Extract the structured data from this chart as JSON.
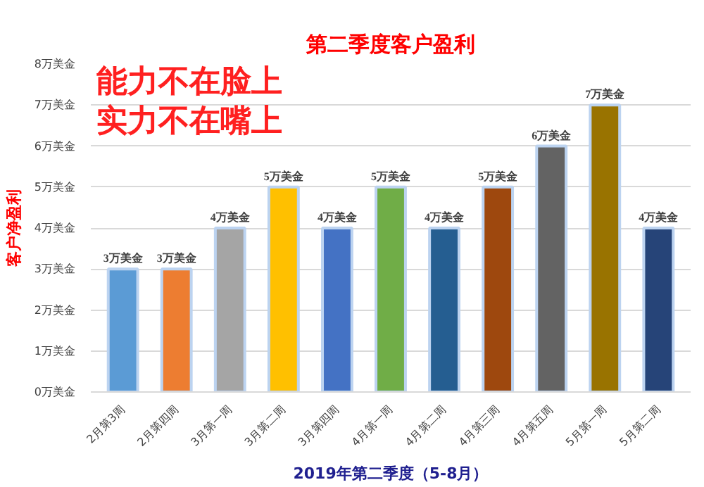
{
  "chart_data": {
    "type": "bar",
    "title": "第二季度客户盈利",
    "xlabel": "2019年第二季度（5-8月）",
    "ylabel": "客户净盈利",
    "annotations": [
      "能力不在脸上",
      "实力不在嘴上"
    ],
    "categories": [
      "2月第3周",
      "2月第四周",
      "3月第一周",
      "3月第二周",
      "3月第四周",
      "4月第一周",
      "4月第二周",
      "4月第三周",
      "4月第五周",
      "5月第一周",
      "5月第二周"
    ],
    "values": [
      3,
      3,
      4,
      5,
      4,
      5,
      4,
      5,
      6,
      7,
      4
    ],
    "value_labels": [
      "3万美金",
      "3万美金",
      "4万美金",
      "5万美金",
      "4万美金",
      "5万美金",
      "4万美金",
      "5万美金",
      "6万美金",
      "7万美金",
      "4万美金"
    ],
    "colors": [
      "#5b9bd5",
      "#ed7d31",
      "#a5a5a5",
      "#ffc000",
      "#4472c4",
      "#70ad47",
      "#255e91",
      "#9e480e",
      "#636363",
      "#997300",
      "#264478"
    ],
    "ylim": [
      0,
      8
    ],
    "yticks": [
      {
        "value": 0,
        "label": "0万美金"
      },
      {
        "value": 1,
        "label": "1万美金"
      },
      {
        "value": 2,
        "label": "2万美金"
      },
      {
        "value": 3,
        "label": "3万美金"
      },
      {
        "value": 4,
        "label": "4万美金"
      },
      {
        "value": 5,
        "label": "5万美金"
      },
      {
        "value": 6,
        "label": "6万美金"
      },
      {
        "value": 7,
        "label": "7万美金"
      },
      {
        "value": 8,
        "label": "8万美金"
      }
    ],
    "grid": "y"
  }
}
